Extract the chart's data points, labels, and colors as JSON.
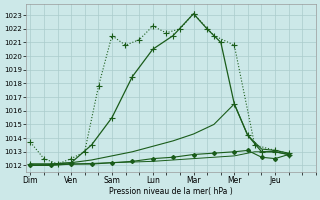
{
  "xlabel": "Pression niveau de la mer( hPa )",
  "background_color": "#cce8e8",
  "grid_color": "#aacccc",
  "line_color": "#1a5c1a",
  "ylim": [
    1011.5,
    1023.8
  ],
  "yticks": [
    1012,
    1013,
    1014,
    1015,
    1016,
    1017,
    1018,
    1019,
    1020,
    1021,
    1022,
    1023
  ],
  "day_labels": [
    "Dim",
    "Ven",
    "Sam",
    "Lun",
    "Mar",
    "Mer",
    "Jeu"
  ],
  "day_positions": [
    0,
    1,
    2,
    3,
    4,
    5,
    6
  ],
  "xlim": [
    -0.1,
    6.6
  ],
  "line1_dotted": {
    "x": [
      0.0,
      0.33,
      0.67,
      1.0,
      1.33,
      1.67,
      2.0,
      2.33,
      2.67,
      3.0,
      3.33,
      3.67,
      4.0,
      4.5,
      5.0,
      5.5,
      6.0,
      6.33
    ],
    "y": [
      1013.7,
      1012.5,
      1012.1,
      1012.5,
      1013.0,
      1017.8,
      1021.5,
      1020.8,
      1021.2,
      1022.2,
      1021.7,
      1022.0,
      1023.1,
      1021.5,
      1020.8,
      1013.5,
      1013.1,
      1012.9
    ]
  },
  "line2_solid_arc": {
    "x": [
      0.0,
      0.5,
      1.0,
      1.5,
      2.0,
      2.5,
      3.0,
      3.5,
      4.0,
      4.33,
      4.67,
      5.0,
      5.33,
      5.67,
      6.0,
      6.33
    ],
    "y": [
      1012.1,
      1012.1,
      1012.2,
      1013.5,
      1015.5,
      1018.5,
      1020.5,
      1021.5,
      1023.1,
      1022.0,
      1021.0,
      1016.5,
      1014.2,
      1013.0,
      1013.0,
      1012.8
    ]
  },
  "line3_gradual": {
    "x": [
      0.0,
      0.5,
      1.0,
      1.5,
      2.0,
      2.5,
      3.0,
      3.5,
      4.0,
      4.5,
      5.0,
      5.33,
      5.67,
      6.0,
      6.33
    ],
    "y": [
      1012.1,
      1012.1,
      1012.2,
      1012.4,
      1012.7,
      1013.0,
      1013.4,
      1013.8,
      1014.3,
      1015.0,
      1016.5,
      1014.2,
      1013.2,
      1013.1,
      1012.9
    ]
  },
  "line4_flat": {
    "x": [
      0.0,
      0.5,
      1.0,
      1.5,
      2.0,
      2.5,
      3.0,
      3.5,
      4.0,
      4.5,
      5.0,
      5.33,
      5.67,
      6.0,
      6.33
    ],
    "y": [
      1012.0,
      1012.0,
      1012.1,
      1012.1,
      1012.2,
      1012.3,
      1012.5,
      1012.6,
      1012.8,
      1012.9,
      1013.0,
      1013.1,
      1012.6,
      1012.5,
      1012.8
    ]
  },
  "line5_very_flat": {
    "x": [
      0.0,
      1.0,
      2.0,
      3.0,
      4.0,
      5.0,
      5.5,
      6.0,
      6.33
    ],
    "y": [
      1012.0,
      1012.1,
      1012.2,
      1012.3,
      1012.5,
      1012.7,
      1013.0,
      1013.0,
      1012.8
    ]
  }
}
